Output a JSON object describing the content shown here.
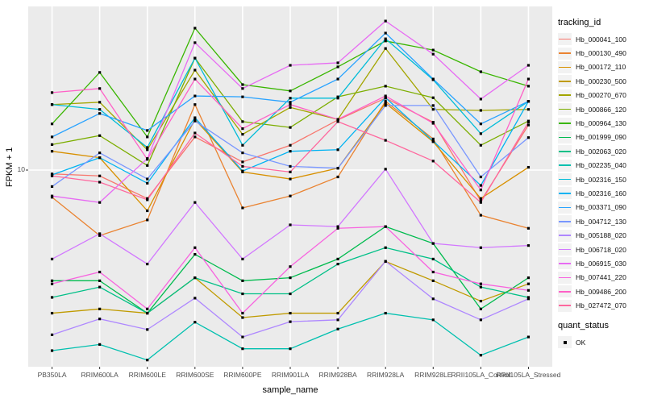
{
  "chart_data": {
    "type": "line",
    "title": "",
    "xlabel": "sample_name",
    "ylabel": "FPKM + 1",
    "y_scale": "log10",
    "y_ticks": [
      {
        "value": 10,
        "label": "10"
      }
    ],
    "ylim_px_note": "single labeled tick at 10; log axis",
    "grid": {
      "panel_bg": "#EBEBEB",
      "gridline": "#FFFFFF"
    },
    "legend_position": "right",
    "point_shape": "filled-square-black",
    "categories": [
      "PB350LA",
      "RRIM600LA",
      "RRIM600LE",
      "RRIM600SE",
      "RRIM600PE",
      "RRIM901LA",
      "RRIM928BA",
      "RRIM928LA",
      "RRIM928LE",
      "RRII105LA_Control",
      "RRII105LA_Stressed"
    ],
    "series": [
      {
        "name": "Hb_000041_100",
        "color": "#F8766D",
        "values": [
          9.6,
          9.4,
          7.4,
          14.2,
          10.9,
          13.0,
          17.0,
          21.4,
          16.6,
          7.2,
          16.1
        ]
      },
      {
        "name": "Hb_000130_490",
        "color": "#EA8331",
        "values": [
          7.5,
          5.0,
          5.9,
          20.0,
          6.7,
          7.6,
          9.3,
          20.7,
          13.9,
          6.2,
          5.4
        ]
      },
      {
        "name": "Hb_000172_110",
        "color": "#D89000",
        "values": [
          12.2,
          11.4,
          6.5,
          17.1,
          9.8,
          9.1,
          10.2,
          20.3,
          13.5,
          7.4,
          10.3
        ]
      },
      {
        "name": "Hb_000230_500",
        "color": "#C09B00",
        "values": [
          2.2,
          2.3,
          2.2,
          3.2,
          2.1,
          2.2,
          2.2,
          3.8,
          3.1,
          2.5,
          3.0
        ]
      },
      {
        "name": "Hb_000270_670",
        "color": "#A3A500",
        "values": [
          20.0,
          20.5,
          12.4,
          28.8,
          14.6,
          19.4,
          17.1,
          36.2,
          19.0,
          18.8,
          19.0
        ]
      },
      {
        "name": "Hb_000866_120",
        "color": "#7CAE00",
        "values": [
          13.1,
          14.4,
          10.5,
          32.7,
          16.7,
          15.7,
          21.7,
          24.3,
          21.5,
          13.0,
          16.8
        ]
      },
      {
        "name": "Hb_000964_130",
        "color": "#39B600",
        "values": [
          16.3,
          28.1,
          14.2,
          44.9,
          24.7,
          23.1,
          29.8,
          39.2,
          35.6,
          28.3,
          24.3
        ]
      },
      {
        "name": "Hb_001999_090",
        "color": "#00BB4E",
        "values": [
          3.1,
          3.1,
          2.2,
          4.1,
          3.1,
          3.2,
          3.9,
          5.5,
          4.6,
          2.3,
          3.2
        ]
      },
      {
        "name": "Hb_002063_020",
        "color": "#00C087",
        "values": [
          2.6,
          2.9,
          2.2,
          3.2,
          2.7,
          2.7,
          3.7,
          4.4,
          3.9,
          2.9,
          2.6
        ]
      },
      {
        "name": "Hb_002235_040",
        "color": "#00C0AF",
        "values": [
          1.48,
          1.58,
          1.34,
          2.0,
          1.51,
          1.51,
          1.86,
          2.2,
          2.05,
          1.41,
          1.71
        ]
      },
      {
        "name": "Hb_002316_150",
        "color": "#00BCD8",
        "values": [
          20.0,
          19.0,
          12.7,
          32.7,
          13.0,
          21.4,
          21.4,
          40.1,
          26.0,
          14.7,
          20.7
        ]
      },
      {
        "name": "Hb_002316_160",
        "color": "#00B3F2",
        "values": [
          9.5,
          11.4,
          8.7,
          17.4,
          9.9,
          12.2,
          12.4,
          21.5,
          13.6,
          8.5,
          20.7
        ]
      },
      {
        "name": "Hb_003371_090",
        "color": "#29A3FF",
        "values": [
          14.2,
          18.2,
          15.2,
          21.9,
          21.7,
          20.5,
          26.2,
          42.6,
          26.2,
          16.3,
          20.7
        ]
      },
      {
        "name": "Hb_004712_130",
        "color": "#7997FF",
        "values": [
          8.4,
          12.0,
          9.1,
          16.8,
          12.0,
          10.4,
          10.2,
          19.8,
          19.8,
          9.3,
          14.1
        ]
      },
      {
        "name": "Hb_005188_020",
        "color": "#AE87FF",
        "values": [
          1.75,
          2.07,
          1.85,
          2.58,
          1.71,
          2.01,
          2.05,
          3.81,
          2.56,
          2.05,
          2.56
        ]
      },
      {
        "name": "Hb_006718_020",
        "color": "#D277FF",
        "values": [
          3.9,
          5.1,
          3.7,
          7.1,
          3.9,
          5.6,
          5.5,
          10.1,
          4.6,
          4.4,
          4.5
        ]
      },
      {
        "name": "Hb_006915_030",
        "color": "#E76BF3",
        "values": [
          7.6,
          7.1,
          11.3,
          38.5,
          23.7,
          30.3,
          31.1,
          48.4,
          34.1,
          21.2,
          30.3
        ]
      },
      {
        "name": "Hb_007441_220",
        "color": "#F863DF",
        "values": [
          3.0,
          3.4,
          2.3,
          4.4,
          2.2,
          3.6,
          5.4,
          5.5,
          3.4,
          3.0,
          2.8
        ]
      },
      {
        "name": "Hb_009486_200",
        "color": "#FF61C7",
        "values": [
          22.7,
          23.7,
          11.2,
          26.2,
          15.5,
          20.0,
          17.1,
          21.9,
          16.4,
          8.1,
          26.2
        ]
      },
      {
        "name": "Hb_027472_070",
        "color": "#FF689E",
        "values": [
          9.4,
          8.8,
          7.3,
          14.8,
          10.4,
          9.8,
          16.7,
          13.7,
          11.0,
          7.1,
          16.6
        ]
      }
    ]
  },
  "axes": {
    "x_title": "sample_name",
    "y_title": "FPKM + 1",
    "y_tick_label": "10"
  },
  "legend": {
    "tracking_title": "tracking_id",
    "quant_title": "quant_status",
    "quant_items": [
      {
        "label": "OK"
      }
    ]
  }
}
